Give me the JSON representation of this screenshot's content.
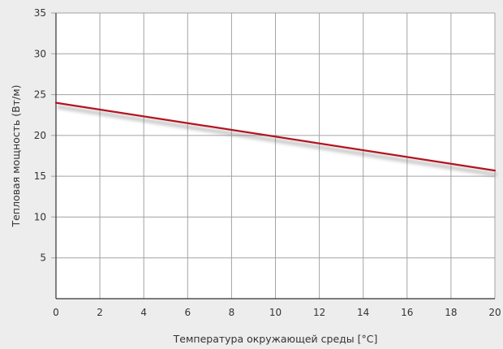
{
  "chart_data": {
    "type": "line",
    "xlabel": "Температура окружающей среды  [°C]",
    "ylabel": "Тепловая мощность (Вт/м)",
    "xlim": [
      0,
      20
    ],
    "ylim": [
      0,
      35
    ],
    "x_ticks": [
      {
        "value": 0,
        "label": "0"
      },
      {
        "value": 2,
        "label": "2"
      },
      {
        "value": 4,
        "label": "4"
      },
      {
        "value": 6,
        "label": "6"
      },
      {
        "value": 8,
        "label": "8"
      },
      {
        "value": 10,
        "label": "10"
      },
      {
        "value": 12,
        "label": "12"
      },
      {
        "value": 14,
        "label": "14"
      },
      {
        "value": 16,
        "label": "16"
      },
      {
        "value": 18,
        "label": "18"
      },
      {
        "value": 20,
        "label": "20"
      }
    ],
    "y_ticks": [
      {
        "value": 5,
        "label": "5"
      },
      {
        "value": 10,
        "label": "10"
      },
      {
        "value": 15,
        "label": "15"
      },
      {
        "value": 20,
        "label": "20"
      },
      {
        "value": 25,
        "label": "25"
      },
      {
        "value": 30,
        "label": "30"
      },
      {
        "value": 35,
        "label": "35"
      }
    ],
    "grid": true,
    "legend": "none",
    "series": [
      {
        "color": "#b3141e",
        "x": [
          0,
          20
        ],
        "y": [
          24.0,
          15.7
        ]
      }
    ]
  }
}
